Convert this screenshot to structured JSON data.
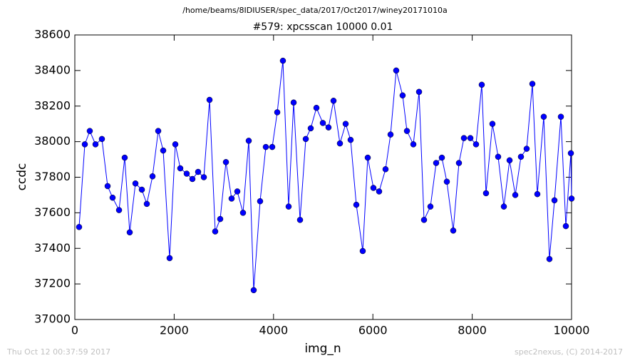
{
  "chart_data": {
    "type": "line",
    "title": "/home/beams/8IDIUSER/spec_data/2017/Oct2017/winey20171010a",
    "subtitle": "#579: xpcsscan 10000 0.01",
    "x_label": "img_n",
    "y_label": "ccdc",
    "footer_left": "Thu Oct 12 00:37:59 2017",
    "footer_right": "spec2nexus, (C) 2014-2017",
    "xlim": [
      0,
      10000
    ],
    "xticks": [
      0,
      2000,
      4000,
      6000,
      8000,
      10000
    ],
    "ylim": [
      37000,
      38600
    ],
    "yticks": [
      37000,
      37200,
      37400,
      37600,
      37800,
      38000,
      38200,
      38400,
      38600
    ],
    "grid": false,
    "x": [
      86,
      201,
      301,
      416,
      545,
      660,
      760,
      890,
      1004,
      1105,
      1220,
      1349,
      1449,
      1564,
      1679,
      1779,
      1908,
      2023,
      2123,
      2252,
      2367,
      2482,
      2597,
      2712,
      2826,
      2927,
      3042,
      3156,
      3271,
      3386,
      3501,
      3601,
      3730,
      3845,
      3974,
      4075,
      4189,
      4304,
      4405,
      4534,
      4649,
      4749,
      4864,
      4993,
      5107,
      5208,
      5337,
      5452,
      5552,
      5667,
      5796,
      5897,
      6011,
      6126,
      6255,
      6356,
      6470,
      6599,
      6686,
      6815,
      6930,
      7030,
      7159,
      7274,
      7389,
      7489,
      7618,
      7733,
      7833,
      7963,
      8077,
      8192,
      8278,
      8407,
      8522,
      8637,
      8752,
      8867,
      8981,
      9096,
      9211,
      9311,
      9440,
      9555,
      9656,
      9785,
      9885,
      9986,
      10000
    ],
    "series": [
      {
        "name": "ccdc",
        "color": "#0000ff",
        "values": [
          37520,
          37985,
          38060,
          37985,
          38015,
          37750,
          37685,
          37615,
          37910,
          37490,
          37765,
          37730,
          37650,
          37805,
          38060,
          37950,
          37345,
          37985,
          37850,
          37820,
          37790,
          37830,
          37800,
          38235,
          37495,
          37565,
          37885,
          37680,
          37720,
          37600,
          38005,
          37165,
          37665,
          37970,
          37970,
          38165,
          38455,
          37635,
          38220,
          37560,
          38015,
          38075,
          38190,
          38105,
          38080,
          38230,
          37990,
          38100,
          38010,
          37645,
          37385,
          37910,
          37740,
          37720,
          37845,
          38040,
          38400,
          38260,
          38060,
          37985,
          38280,
          37560,
          37635,
          37880,
          37910,
          37775,
          37500,
          37880,
          38020,
          38020,
          37985,
          38320,
          37710,
          38100,
          37915,
          37635,
          37895,
          37700,
          37915,
          37960,
          38325,
          37705,
          38140,
          37340,
          37670,
          38140,
          37525,
          37935,
          37680
        ]
      }
    ]
  }
}
